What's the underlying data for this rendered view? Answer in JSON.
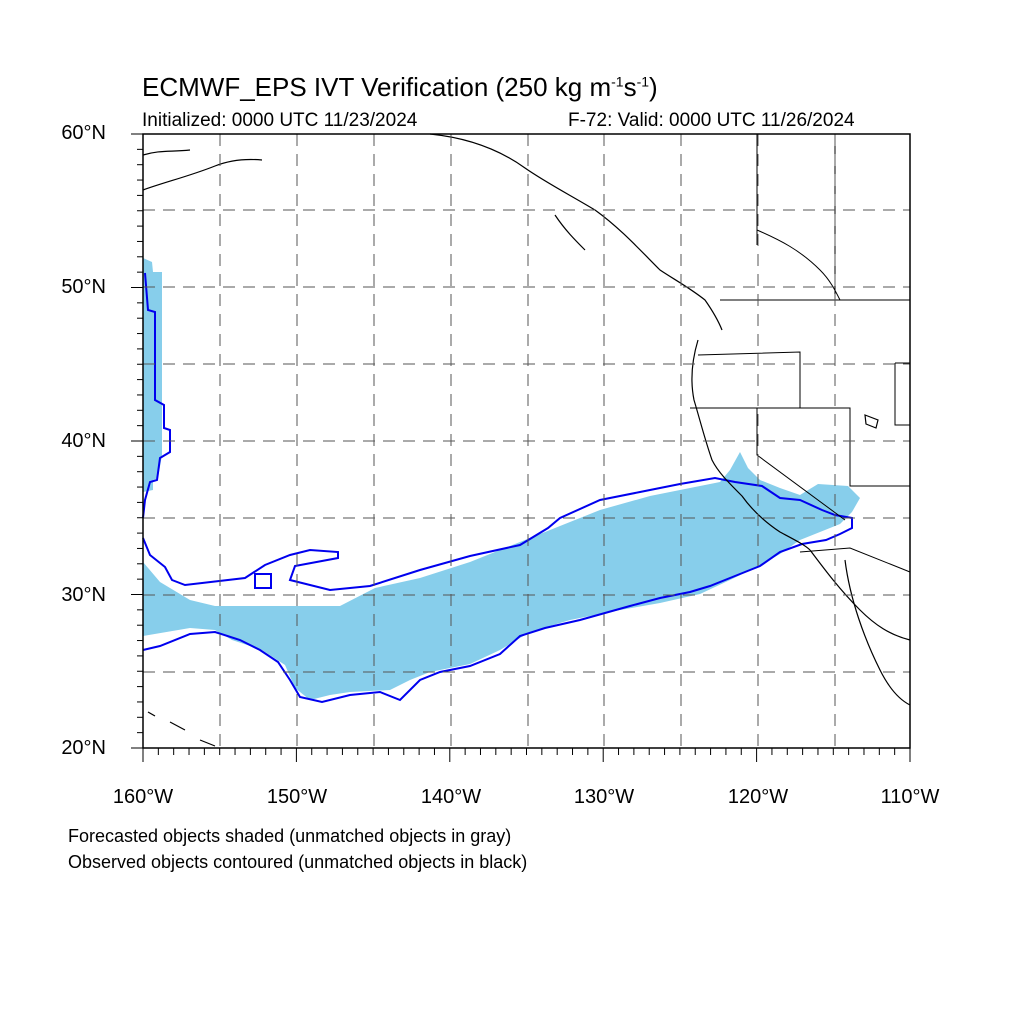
{
  "title": {
    "prefix": "ECMWF_EPS IVT Verification (250 kg m",
    "sup1": "-1",
    "mid": "s",
    "sup2": "-1",
    "suffix": ")"
  },
  "initialized": "Initialized: 0000 UTC 11/23/2024",
  "valid": "F-72: Valid: 0000 UTC 11/26/2024",
  "axes": {
    "lat_labels": [
      "60°N",
      "50°N",
      "40°N",
      "30°N",
      "20°N"
    ],
    "lon_labels": [
      "160°W",
      "150°W",
      "140°W",
      "130°W",
      "120°W",
      "110°W"
    ],
    "lat_range": [
      20,
      60
    ],
    "lon_range": [
      -160,
      -110
    ],
    "grid": "dashed"
  },
  "captions": [
    "Forecasted objects shaded (unmatched objects in gray)",
    "Observed objects contoured (unmatched objects in black)"
  ],
  "colors": {
    "forecast_fill": "#87ceeb",
    "observed_contour": "#0000ee",
    "coastline": "#000000",
    "grid": "#555555"
  }
}
